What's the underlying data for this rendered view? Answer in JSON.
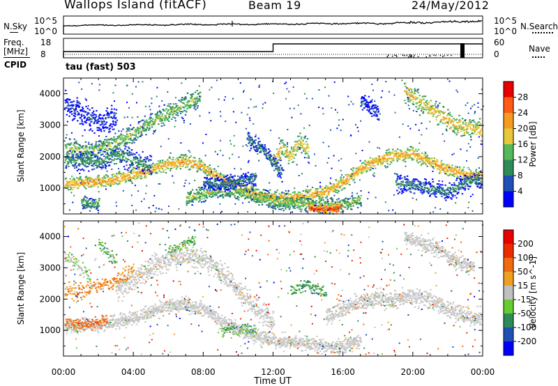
{
  "header": {
    "station": "Wallops Island (fitACF)",
    "beam": "Beam 19",
    "date": "24/May/2012"
  },
  "noise_panel": {
    "left_label": "N.Sky",
    "right_label": "N.Search",
    "left_ticks": [
      "10^5",
      "10^0"
    ],
    "right_ticks": [
      "10^5",
      "10^0"
    ]
  },
  "freq_panel": {
    "left_label_1": "Freq.",
    "left_label_2": "[MHz]",
    "right_label": "Nave",
    "left_ticks": [
      "18",
      "8"
    ],
    "right_ticks": [
      "60",
      "0"
    ]
  },
  "cpid": {
    "label": "CPID",
    "value": "tau (fast) 503"
  },
  "chart_data": [
    {
      "type": "heatmap",
      "title": "Power",
      "ylabel": "Slant Range [km]",
      "xlabel": "Time UT",
      "x_ticks": [
        "00:00",
        "04:00",
        "08:00",
        "12:00",
        "16:00",
        "20:00",
        "00:00"
      ],
      "y_ticks": [
        1000,
        2000,
        3000,
        4000
      ],
      "ylim": [
        180,
        4500
      ],
      "colorbar": {
        "label": "Power [dB]",
        "ticks": [
          "28",
          "24",
          "20",
          "16",
          "12",
          "8",
          "4"
        ],
        "colors": [
          "#0000ff",
          "#1f4fb5",
          "#2e8b57",
          "#55b85a",
          "#e8c83a",
          "#f39c1f",
          "#ff5a14",
          "#e80000"
        ]
      },
      "bands": [
        {
          "points": [
            [
              0,
              1150
            ],
            [
              2,
              1200
            ],
            [
              3,
              1300
            ],
            [
              4,
              1450
            ],
            [
              5,
              1600
            ],
            [
              6,
              1800
            ],
            [
              7,
              1850
            ],
            [
              8,
              1700
            ],
            [
              9,
              1300
            ],
            [
              10,
              1050
            ],
            [
              11,
              850
            ],
            [
              12,
              700
            ],
            [
              13,
              700
            ],
            [
              14,
              800
            ],
            [
              15,
              900
            ],
            [
              16,
              1200
            ],
            [
              17,
              1650
            ],
            [
              18,
              1900
            ],
            [
              19,
              2050
            ],
            [
              20,
              2100
            ],
            [
              21,
              1850
            ],
            [
              22,
              1600
            ],
            [
              23,
              1450
            ],
            [
              24,
              1400
            ]
          ],
          "width": 220,
          "power": 22
        },
        {
          "points": [
            [
              0,
              2300
            ],
            [
              1.5,
              2200
            ],
            [
              3,
              2450
            ],
            [
              4,
              2750
            ],
            [
              5,
              3100
            ],
            [
              6,
              3400
            ],
            [
              7,
              3700
            ],
            [
              7.8,
              3900
            ]
          ],
          "width": 320,
          "power": 16
        },
        {
          "points": [
            [
              0,
              1900
            ],
            [
              2,
              1850
            ],
            [
              3,
              2100
            ],
            [
              4,
              1900
            ],
            [
              5,
              1700
            ]
          ],
          "width": 300,
          "power": 12
        },
        {
          "points": [
            [
              0,
              3700
            ],
            [
              1,
              3400
            ],
            [
              2,
              3100
            ],
            [
              3,
              3300
            ]
          ],
          "width": 420,
          "power": 6
        },
        {
          "points": [
            [
              7,
              700
            ],
            [
              8,
              850
            ],
            [
              9,
              950
            ],
            [
              10,
              900
            ],
            [
              11,
              750
            ],
            [
              12,
              600
            ],
            [
              13,
              550
            ],
            [
              14,
              500
            ],
            [
              15,
              450
            ],
            [
              16,
              500
            ],
            [
              17,
              700
            ]
          ],
          "width": 260,
          "power": 16
        },
        {
          "points": [
            [
              14,
              400
            ],
            [
              14.5,
              350
            ],
            [
              15.2,
              350
            ],
            [
              15.8,
              400
            ]
          ],
          "width": 160,
          "power": 28
        },
        {
          "points": [
            [
              12,
              1900
            ],
            [
              12.5,
              2300
            ],
            [
              13,
              2000
            ],
            [
              13.5,
              2500
            ],
            [
              14,
              2200
            ]
          ],
          "width": 300,
          "power": 20
        },
        {
          "points": [
            [
              10.5,
              2600
            ],
            [
              11,
              2400
            ],
            [
              11.5,
              2200
            ],
            [
              12,
              1800
            ],
            [
              12.5,
              1500
            ]
          ],
          "width": 260,
          "power": 10
        },
        {
          "points": [
            [
              19.5,
              4100
            ],
            [
              20,
              3900
            ],
            [
              21,
              3550
            ],
            [
              22,
              3150
            ],
            [
              23,
              2950
            ],
            [
              24,
              2850
            ]
          ],
          "width": 360,
          "power": 20
        },
        {
          "points": [
            [
              17,
              3800
            ],
            [
              17.5,
              3600
            ],
            [
              18,
              3400
            ]
          ],
          "width": 300,
          "power": 6
        },
        {
          "points": [
            [
              19,
              1200
            ],
            [
              20,
              1100
            ],
            [
              21,
              1000
            ],
            [
              22,
              900
            ],
            [
              23,
              1200
            ],
            [
              24,
              1300
            ]
          ],
          "width": 280,
          "power": 10
        },
        {
          "points": [
            [
              8,
              1200
            ],
            [
              9,
              1150
            ],
            [
              10,
              1250
            ],
            [
              11,
              1350
            ]
          ],
          "width": 240,
          "power": 9
        },
        {
          "points": [
            [
              1,
              600
            ],
            [
              1.5,
              500
            ],
            [
              2,
              550
            ]
          ],
          "width": 200,
          "power": 14
        }
      ]
    },
    {
      "type": "heatmap",
      "title": "Velocity",
      "ylabel": "Slant Range [km]",
      "xlabel": "Time UT",
      "x_ticks": [
        "00:00",
        "04:00",
        "08:00",
        "12:00",
        "16:00",
        "20:00",
        "00:00"
      ],
      "y_ticks": [
        1000,
        2000,
        3000,
        4000
      ],
      "ylim": [
        180,
        4500
      ],
      "colorbar": {
        "label": "Velocity [m s^-1]",
        "ticks": [
          "200",
          "100",
          "50",
          "15",
          "-15",
          "-50",
          "-100",
          "-200"
        ],
        "colors": [
          "#0000ff",
          "#1f4fb5",
          "#2e8b57",
          "#66cc33",
          "#c0c0c0",
          "#f0a020",
          "#f06a10",
          "#ee2a00",
          "#e80000"
        ]
      },
      "gray_regions": [
        {
          "points": [
            [
              0,
              1150
            ],
            [
              2,
              1200
            ],
            [
              3,
              1300
            ],
            [
              4,
              1450
            ],
            [
              5,
              1600
            ],
            [
              6,
              1800
            ],
            [
              7,
              1850
            ],
            [
              8,
              1700
            ],
            [
              9,
              1300
            ],
            [
              10,
              1050
            ],
            [
              11,
              850
            ],
            [
              12,
              700
            ],
            [
              13,
              650
            ],
            [
              14,
              600
            ],
            [
              15,
              500
            ],
            [
              16,
              500
            ],
            [
              17,
              700
            ]
          ],
          "width": 240
        },
        {
          "points": [
            [
              3,
              2300
            ],
            [
              4,
              2650
            ],
            [
              5,
              3000
            ],
            [
              6,
              3300
            ],
            [
              7,
              3400
            ],
            [
              8,
              3300
            ],
            [
              9,
              2900
            ],
            [
              10,
              2300
            ],
            [
              11,
              1700
            ],
            [
              12,
              1300
            ]
          ],
          "width": 360
        },
        {
          "points": [
            [
              15,
              1500
            ],
            [
              16,
              1700
            ],
            [
              17,
              1900
            ],
            [
              18,
              2050
            ],
            [
              19,
              2000
            ],
            [
              20,
              2100
            ],
            [
              21,
              2000
            ],
            [
              22,
              1700
            ],
            [
              23,
              1500
            ],
            [
              24,
              1400
            ]
          ],
          "width": 300
        },
        {
          "points": [
            [
              19.5,
              4000
            ],
            [
              20.5,
              3800
            ],
            [
              21.5,
              3600
            ],
            [
              22.5,
              3200
            ],
            [
              23.5,
              3000
            ]
          ],
          "width": 260
        }
      ],
      "colored_regions": [
        {
          "points": [
            [
              0,
              2300
            ],
            [
              1,
              2250
            ],
            [
              2,
              2450
            ],
            [
              3,
              2600
            ],
            [
              4,
              2950
            ]
          ],
          "width": 240,
          "velocity": -30
        },
        {
          "points": [
            [
              2,
              3800
            ],
            [
              2.5,
              3500
            ],
            [
              3,
              3300
            ]
          ],
          "width": 220,
          "velocity": 30
        },
        {
          "points": [
            [
              6,
              3500
            ],
            [
              7,
              3800
            ],
            [
              7.5,
              3900
            ]
          ],
          "width": 200,
          "velocity": 30
        },
        {
          "points": [
            [
              0,
              3400
            ],
            [
              1,
              3000
            ],
            [
              1.5,
              2700
            ]
          ],
          "width": 260,
          "velocity": 15
        },
        {
          "points": [
            [
              13,
              2300
            ],
            [
              14,
              2500
            ],
            [
              15,
              2200
            ]
          ],
          "width": 200,
          "velocity": 40
        },
        {
          "points": [
            [
              0,
              1300
            ],
            [
              1.5,
              1200
            ],
            [
              2.5,
              1350
            ]
          ],
          "width": 200,
          "velocity": -60
        },
        {
          "points": [
            [
              9,
              1000
            ],
            [
              10,
              1100
            ],
            [
              11,
              1050
            ]
          ],
          "width": 200,
          "velocity": 30
        }
      ]
    }
  ]
}
